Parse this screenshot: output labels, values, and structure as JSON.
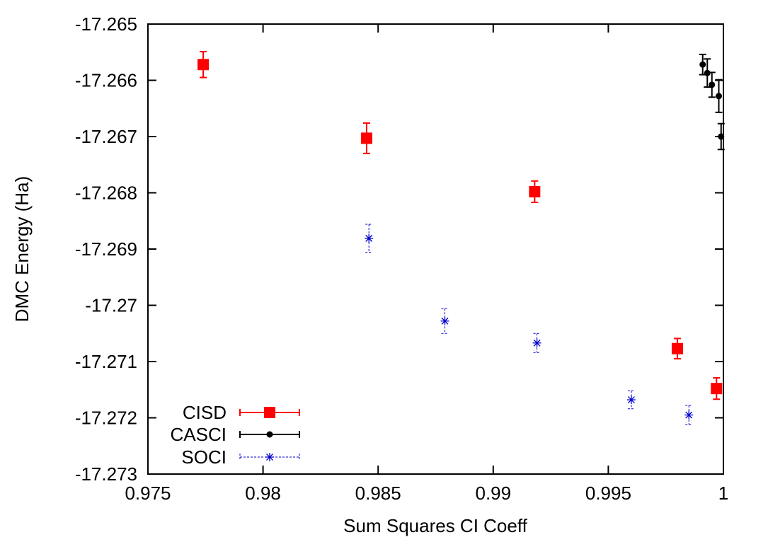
{
  "chart_data": {
    "type": "scatter",
    "xlabel": "Sum Squares CI Coeff",
    "ylabel": "DMC Energy (Ha)",
    "xlim": [
      0.975,
      1.0
    ],
    "ylim": [
      -17.273,
      -17.265
    ],
    "x_ticks": [
      0.975,
      0.98,
      0.985,
      0.99,
      0.995,
      1.0
    ],
    "x_tick_labels": [
      "0.975",
      "0.98",
      "0.985",
      "0.99",
      "0.995",
      "1"
    ],
    "y_ticks": [
      -17.265,
      -17.266,
      -17.267,
      -17.268,
      -17.269,
      -17.27,
      -17.271,
      -17.272,
      -17.273
    ],
    "y_tick_labels": [
      "-17.265",
      "-17.266",
      "-17.267",
      "-17.268",
      "-17.269",
      "-17.27",
      "-17.271",
      "-17.272",
      "-17.273"
    ],
    "grid": false,
    "legend_position": "bottom-left",
    "series": [
      {
        "name": "CISD",
        "color": "#ff0000",
        "marker": "square",
        "line": "solid",
        "points": [
          {
            "x": 0.9774,
            "y": -17.26572,
            "err": 0.00023
          },
          {
            "x": 0.9845,
            "y": -17.26703,
            "err": 0.00027
          },
          {
            "x": 0.9918,
            "y": -17.26798,
            "err": 0.00019
          },
          {
            "x": 0.998,
            "y": -17.27077,
            "err": 0.00018
          },
          {
            "x": 0.9997,
            "y": -17.27148,
            "err": 0.00019
          }
        ]
      },
      {
        "name": "CASCI",
        "color": "#000000",
        "marker": "dot",
        "line": "solid",
        "points": [
          {
            "x": 0.9991,
            "y": -17.26572,
            "err": 0.00018
          },
          {
            "x": 0.9993,
            "y": -17.26587,
            "err": 0.00025
          },
          {
            "x": 0.9995,
            "y": -17.26608,
            "err": 0.00022
          },
          {
            "x": 0.9998,
            "y": -17.26628,
            "err": 0.00029
          },
          {
            "x": 0.9999,
            "y": -17.267,
            "err": 0.00023
          }
        ]
      },
      {
        "name": "SOCI",
        "color": "#0000cc",
        "marker": "star",
        "line": "dashed",
        "points": [
          {
            "x": 0.9846,
            "y": -17.26881,
            "err": 0.00025
          },
          {
            "x": 0.9879,
            "y": -17.27028,
            "err": 0.00022
          },
          {
            "x": 0.9919,
            "y": -17.27067,
            "err": 0.00017
          },
          {
            "x": 0.996,
            "y": -17.27168,
            "err": 0.00016
          },
          {
            "x": 0.9985,
            "y": -17.27195,
            "err": 0.00017
          }
        ]
      }
    ]
  }
}
